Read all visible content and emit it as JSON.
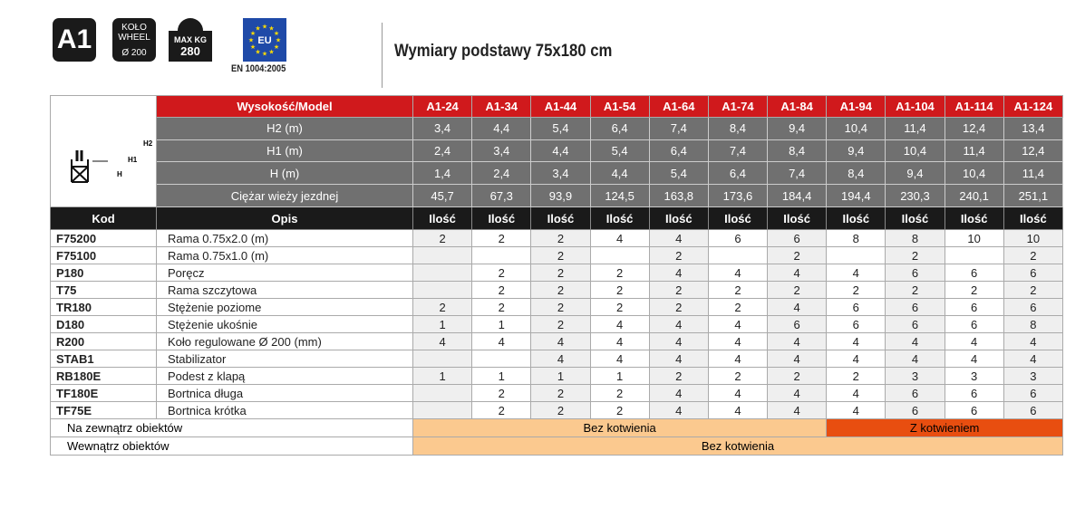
{
  "badges": {
    "model": "A1",
    "wheel_line1": "KOŁO",
    "wheel_line2": "WHEEL",
    "wheel_size": "Ø 200",
    "max_label": "MAX KG",
    "max_value": "280",
    "eu": "EU",
    "standard": "EN 1004:2005"
  },
  "title": "Wymiary podstawy 75x180 cm",
  "diagram_labels": {
    "h2": "H2",
    "h1": "H1",
    "h": "H"
  },
  "header": {
    "label": "Wysokość/Model",
    "models": [
      "A1-24",
      "A1-34",
      "A1-44",
      "A1-54",
      "A1-64",
      "A1-74",
      "A1-84",
      "A1-94",
      "A1-104",
      "A1-114",
      "A1-124"
    ]
  },
  "dims": [
    {
      "label": "H2 (m)",
      "values": [
        "3,4",
        "4,4",
        "5,4",
        "6,4",
        "7,4",
        "8,4",
        "9,4",
        "10,4",
        "11,4",
        "12,4",
        "13,4"
      ]
    },
    {
      "label": "H1 (m)",
      "values": [
        "2,4",
        "3,4",
        "4,4",
        "5,4",
        "6,4",
        "7,4",
        "8,4",
        "9,4",
        "10,4",
        "11,4",
        "12,4"
      ]
    },
    {
      "label": "H (m)",
      "values": [
        "1,4",
        "2,4",
        "3,4",
        "4,4",
        "5,4",
        "6,4",
        "7,4",
        "8,4",
        "9,4",
        "10,4",
        "11,4"
      ]
    },
    {
      "label": "Ciężar wieży jezdnej",
      "values": [
        "45,7",
        "67,3",
        "93,9",
        "124,5",
        "163,8",
        "173,6",
        "184,4",
        "194,4",
        "230,3",
        "240,1",
        "251,1"
      ]
    }
  ],
  "columns": {
    "kod": "Kod",
    "opis": "Opis",
    "qty": "Ilość"
  },
  "rows": [
    {
      "kod": "F75200",
      "opis": "Rama  0.75x2.0 (m)",
      "q": [
        "2",
        "2",
        "2",
        "4",
        "4",
        "6",
        "6",
        "8",
        "8",
        "10",
        "10"
      ]
    },
    {
      "kod": "F75100",
      "opis": "Rama 0.75x1.0 (m)",
      "q": [
        "",
        "",
        "2",
        "",
        "2",
        "",
        "2",
        "",
        "2",
        "",
        "2"
      ]
    },
    {
      "kod": "P180",
      "opis": "Poręcz",
      "q": [
        "",
        "2",
        "2",
        "2",
        "4",
        "4",
        "4",
        "4",
        "6",
        "6",
        "6"
      ]
    },
    {
      "kod": "T75",
      "opis": "Rama szczytowa",
      "q": [
        "",
        "2",
        "2",
        "2",
        "2",
        "2",
        "2",
        "2",
        "2",
        "2",
        "2"
      ]
    },
    {
      "kod": "TR180",
      "opis": "Stężenie poziome",
      "q": [
        "2",
        "2",
        "2",
        "2",
        "2",
        "2",
        "4",
        "6",
        "6",
        "6",
        "6"
      ]
    },
    {
      "kod": "D180",
      "opis": "Stężenie ukośnie",
      "q": [
        "1",
        "1",
        "2",
        "4",
        "4",
        "4",
        "6",
        "6",
        "6",
        "6",
        "8"
      ]
    },
    {
      "kod": "R200",
      "opis": "Koło regulowane Ø 200 (mm)",
      "q": [
        "4",
        "4",
        "4",
        "4",
        "4",
        "4",
        "4",
        "4",
        "4",
        "4",
        "4"
      ]
    },
    {
      "kod": "STAB1",
      "opis": "Stabilizator",
      "q": [
        "",
        "",
        "4",
        "4",
        "4",
        "4",
        "4",
        "4",
        "4",
        "4",
        "4"
      ]
    },
    {
      "kod": "RB180E",
      "opis": "Podest z klapą",
      "q": [
        "1",
        "1",
        "1",
        "1",
        "2",
        "2",
        "2",
        "2",
        "3",
        "3",
        "3"
      ]
    },
    {
      "kod": "TF180E",
      "opis": "Bortnica długa",
      "q": [
        "",
        "2",
        "2",
        "2",
        "4",
        "4",
        "4",
        "4",
        "6",
        "6",
        "6"
      ]
    },
    {
      "kod": "TF75E",
      "opis": "Bortnica krótka",
      "q": [
        "",
        "2",
        "2",
        "2",
        "4",
        "4",
        "4",
        "4",
        "6",
        "6",
        "6"
      ]
    }
  ],
  "footer": {
    "outside": "Na zewnątrz obiektów",
    "outside_a": "Bez kotwienia",
    "outside_b": "Z kotwieniem",
    "inside": "Wewnątrz obiektów",
    "inside_a": "Bez kotwienia"
  },
  "colors": {
    "header_red": "#d0191c",
    "dim_gray": "#707070",
    "light_orange": "#fbc98f",
    "dark_orange": "#e84e10"
  }
}
